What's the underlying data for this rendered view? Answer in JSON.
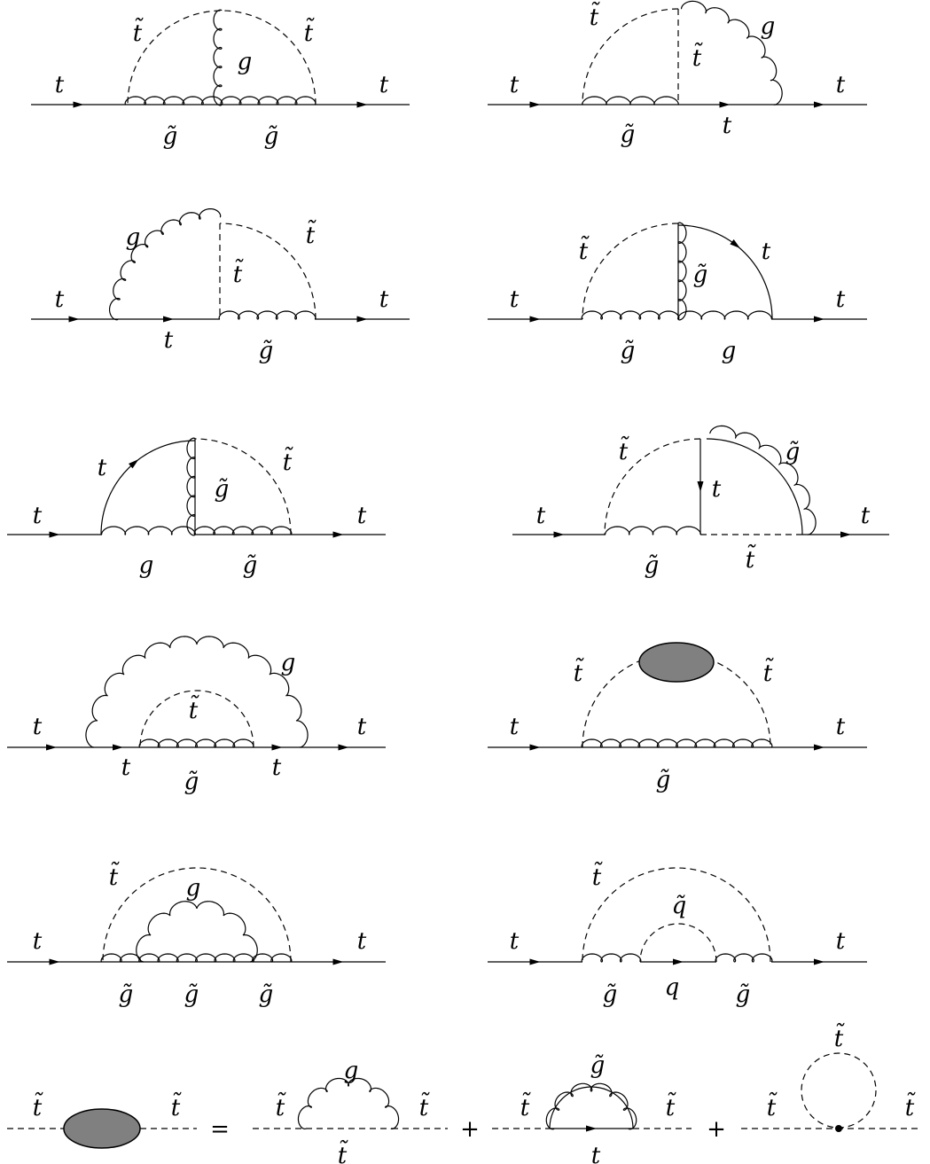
{
  "labels": {
    "t": "t",
    "stop": "t̃",
    "g": "g",
    "gluino": "g̃",
    "q": "q",
    "squark": "q̃",
    "equals": "=",
    "plus": "+"
  },
  "colors": {
    "blob_fill": "#808080",
    "line": "#000000"
  }
}
